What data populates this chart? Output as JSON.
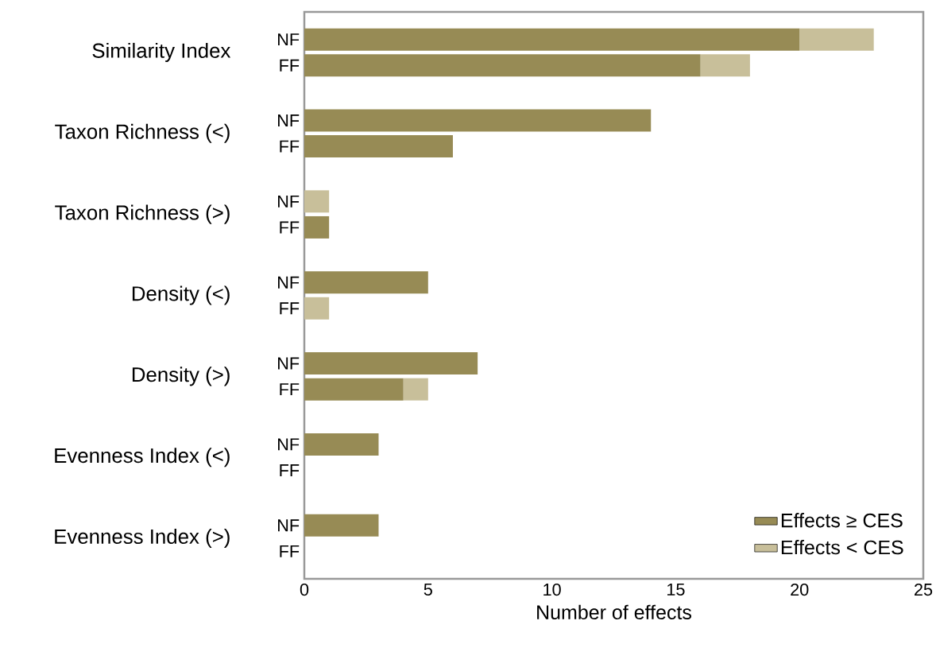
{
  "chart_data": {
    "type": "bar",
    "orientation": "horizontal",
    "stacked": true,
    "categories": [
      "NF",
      "FF",
      "NF",
      "FF",
      "NF",
      "FF",
      "NF",
      "FF",
      "NF",
      "FF",
      "NF",
      "FF",
      "NF",
      "FF"
    ],
    "annotations": [
      "Similarity Index",
      "Taxon Richness (<)",
      "Taxon Richness (>)",
      "Density (<)",
      "Density (>)",
      "Evenness Index (<)",
      "Evenness Index (>)"
    ],
    "series": [
      {
        "name": "Effects ≥ CES",
        "color": "#978b55",
        "values": [
          20,
          16,
          14,
          6,
          0,
          1,
          5,
          0,
          7,
          4,
          3,
          0,
          3,
          0
        ]
      },
      {
        "name": "Effects < CES",
        "color": "#c8bf9a",
        "values": [
          3,
          2,
          0,
          0,
          1,
          0,
          0,
          1,
          0,
          1,
          0,
          0,
          0,
          0
        ]
      }
    ],
    "xlabel": "Number  of effects",
    "xlim": [
      0,
      25
    ],
    "xticks": [
      0,
      5,
      10,
      15,
      20,
      25
    ],
    "legend": "bottom right",
    "grid": false
  }
}
